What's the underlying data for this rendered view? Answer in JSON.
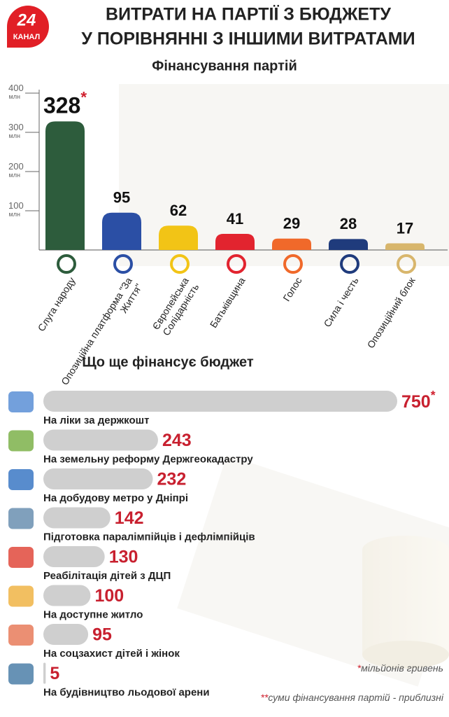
{
  "header": {
    "title_lines": [
      "ВИТРАТИ НА ПАРТІЇ З БЮДЖЕТУ",
      "У ПОРІВНЯННІ З ІНШИМИ ВИТРАТАМИ"
    ],
    "logo": [
      "24",
      "КАНАЛ"
    ]
  },
  "chart_data": [
    {
      "type": "bar",
      "orientation": "vertical",
      "title": "Фінансування партій",
      "categories": [
        "Слуга народу",
        "Опозиційна платформа \"За Життя\"",
        "Європейська Солідарність",
        "Батьківщина",
        "Голос",
        "Сила і честь",
        "Опозиційний блок"
      ],
      "values": [
        328,
        95,
        62,
        41,
        29,
        28,
        17
      ],
      "value_labels": [
        "328*",
        "95",
        "62",
        "41",
        "29",
        "28",
        "17"
      ],
      "colors": [
        "#2d5c3c",
        "#2b4fa5",
        "#f2c416",
        "#e2242f",
        "#f0692a",
        "#1f3b7c",
        "#d8b66c"
      ],
      "ylim": [
        0,
        400
      ],
      "yticks": [
        {
          "value": 100,
          "label": "100 млн"
        },
        {
          "value": 200,
          "label": "200 млн"
        },
        {
          "value": 300,
          "label": "300 млн"
        },
        {
          "value": 400,
          "label": "400 млн"
        }
      ]
    },
    {
      "type": "bar",
      "orientation": "horizontal",
      "title": "Що ще фінансує бюджет",
      "categories": [
        "На ліки за держкошт",
        "На земельну реформу Держгеокадастру",
        "На добудову метро у Дніпрі",
        "Підготовка паралімпійців і дефлімпійців",
        "Реабілітація дітей з ДЦП",
        "На доступне житло",
        "На соцзахист дітей і жінок",
        "На будівництво льодової арени"
      ],
      "values": [
        750,
        243,
        232,
        142,
        130,
        100,
        95,
        5
      ],
      "value_labels": [
        "750*",
        "243",
        "232",
        "142",
        "130",
        "100",
        "95",
        "5"
      ],
      "color": "#cfcfcf",
      "notes": [
        "*мільйонів гривень",
        "**суми фінансування партій - приблизні"
      ]
    }
  ]
}
